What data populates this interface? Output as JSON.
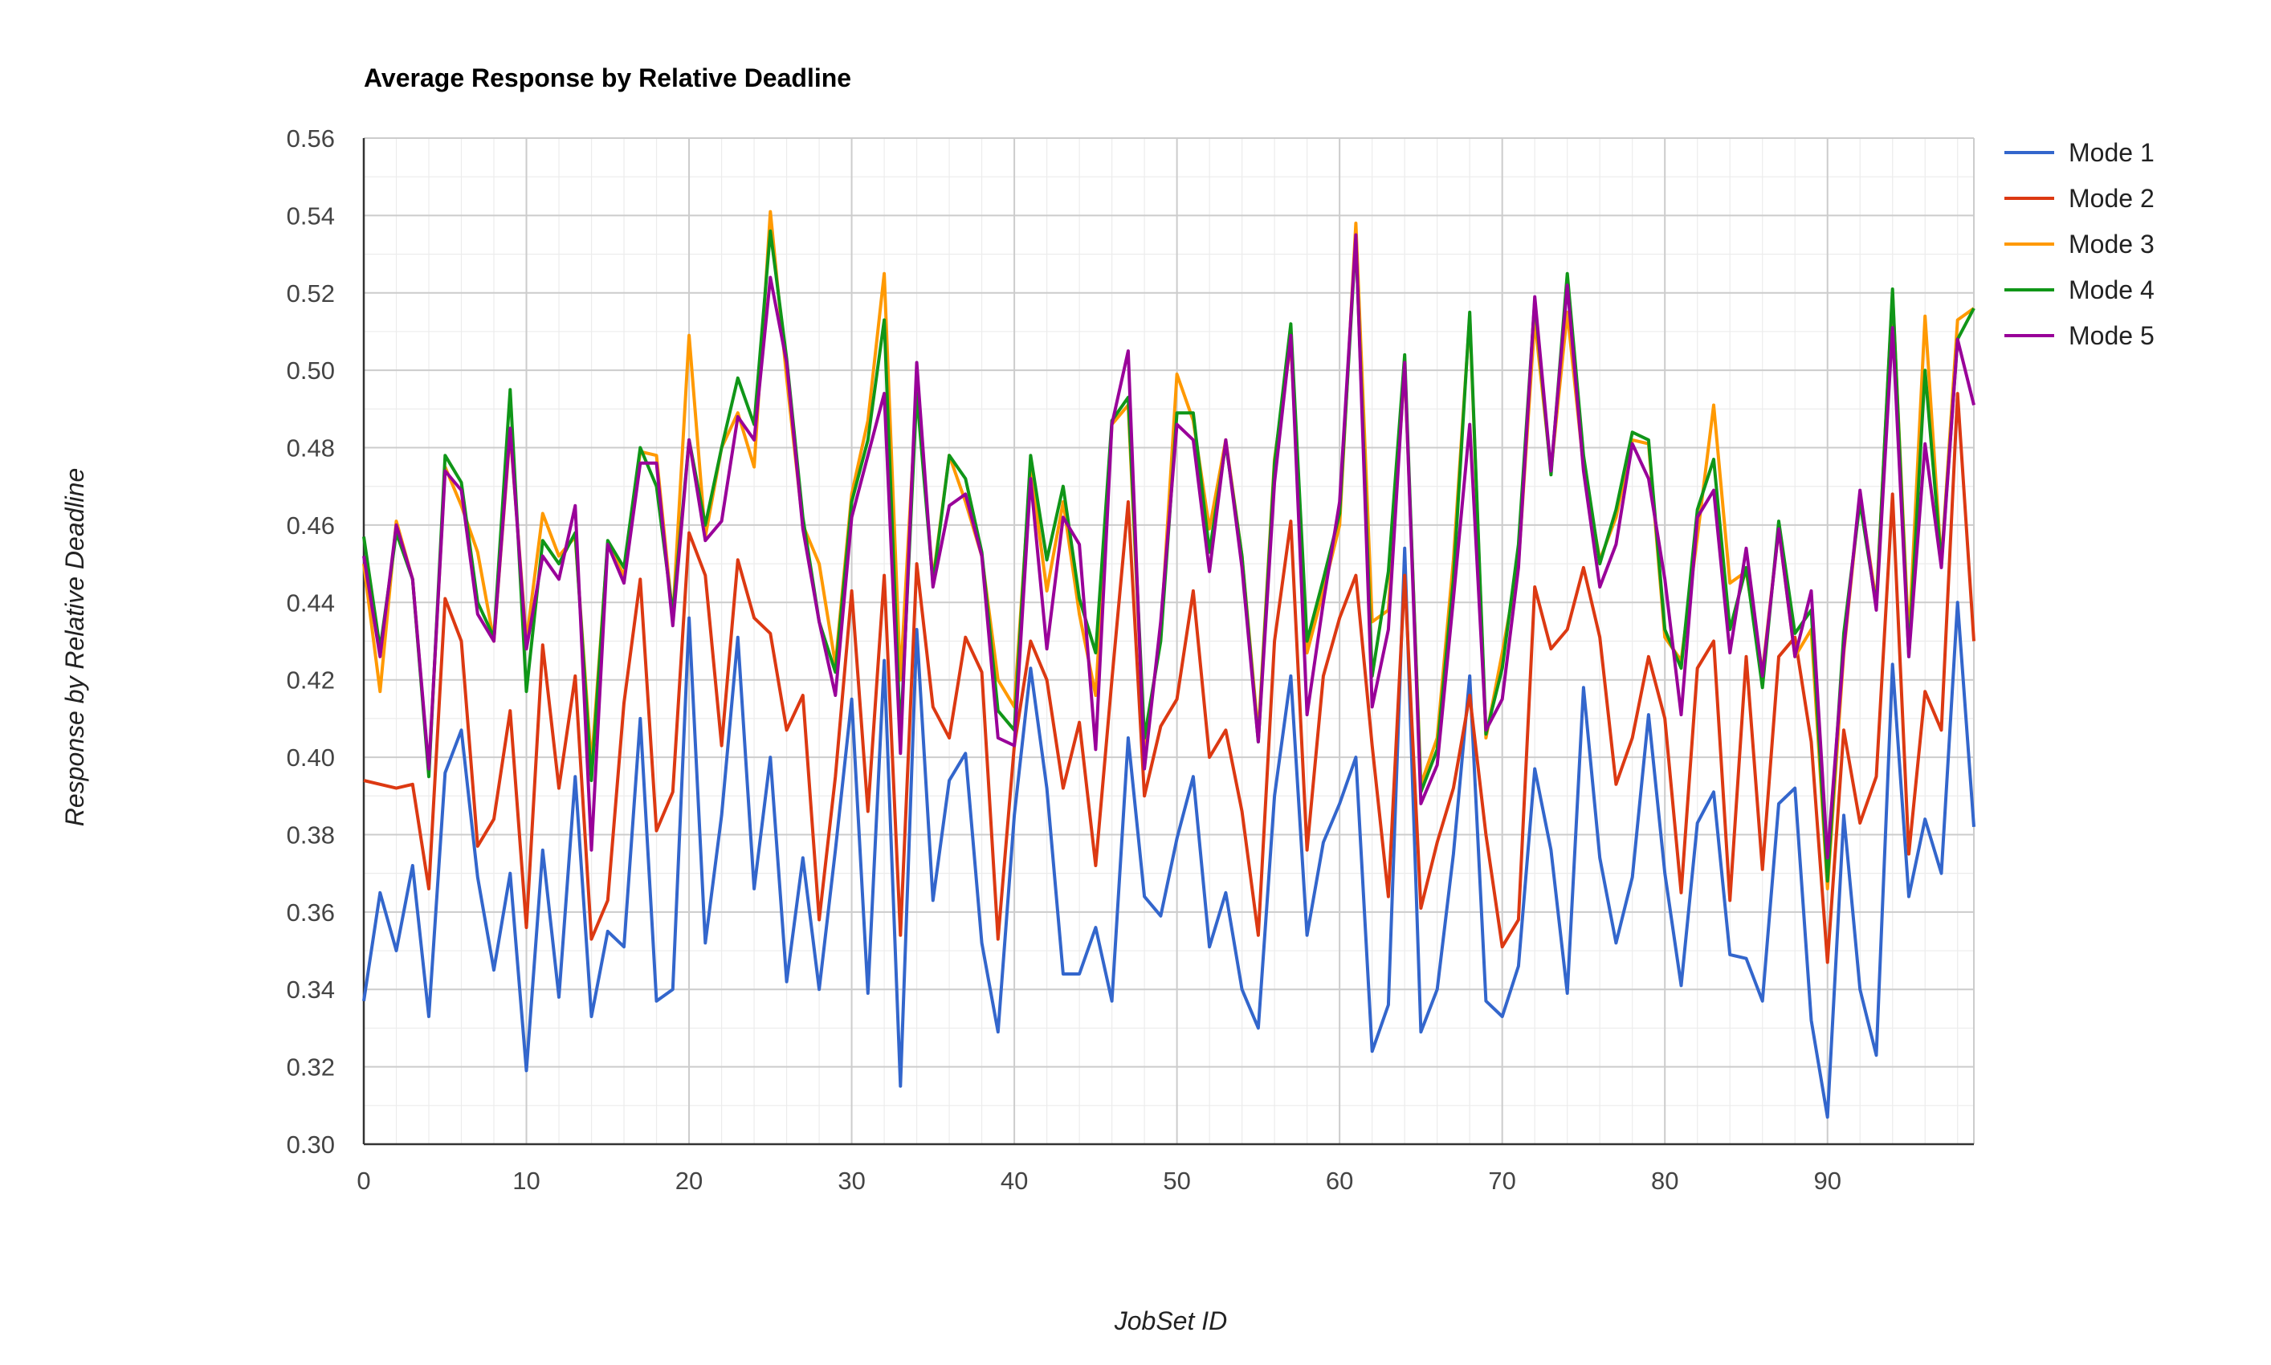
{
  "chart_data": {
    "type": "line",
    "title": "Average Response by Relative Deadline",
    "xlabel": "JobSet ID",
    "ylabel": "Response by Relative Deadline",
    "xlim": [
      0,
      99
    ],
    "ylim": [
      0.3,
      0.56
    ],
    "x_ticks": [
      "0",
      "10",
      "20",
      "30",
      "40",
      "50",
      "60",
      "70",
      "80",
      "90"
    ],
    "y_ticks": [
      "0.30",
      "0.32",
      "0.34",
      "0.36",
      "0.38",
      "0.40",
      "0.42",
      "0.44",
      "0.46",
      "0.48",
      "0.50",
      "0.52",
      "0.54",
      "0.56"
    ],
    "grid": true,
    "legend_position": "right",
    "x": [
      0,
      1,
      2,
      3,
      4,
      5,
      6,
      7,
      8,
      9,
      10,
      11,
      12,
      13,
      14,
      15,
      16,
      17,
      18,
      19,
      20,
      21,
      22,
      23,
      24,
      25,
      26,
      27,
      28,
      29,
      30,
      31,
      32,
      33,
      34,
      35,
      36,
      37,
      38,
      39,
      40,
      41,
      42,
      43,
      44,
      45,
      46,
      47,
      48,
      49,
      50,
      51,
      52,
      53,
      54,
      55,
      56,
      57,
      58,
      59,
      60,
      61,
      62,
      63,
      64,
      65,
      66,
      67,
      68,
      69,
      70,
      71,
      72,
      73,
      74,
      75,
      76,
      77,
      78,
      79,
      80,
      81,
      82,
      83,
      84,
      85,
      86,
      87,
      88,
      89,
      90,
      91,
      92,
      93,
      94,
      95,
      96,
      97,
      98,
      99
    ],
    "series": [
      {
        "name": "Mode 1",
        "color": "#3366cc",
        "values": [
          0.337,
          0.365,
          0.35,
          0.372,
          0.333,
          0.396,
          0.407,
          0.369,
          0.345,
          0.37,
          0.319,
          0.376,
          0.338,
          0.395,
          0.333,
          0.355,
          0.351,
          0.41,
          0.337,
          0.34,
          0.436,
          0.352,
          0.385,
          0.431,
          0.366,
          0.4,
          0.342,
          0.374,
          0.34,
          0.376,
          0.415,
          0.339,
          0.425,
          0.315,
          0.433,
          0.363,
          0.394,
          0.401,
          0.352,
          0.329,
          0.385,
          0.423,
          0.392,
          0.344,
          0.344,
          0.356,
          0.337,
          0.405,
          0.364,
          0.359,
          0.379,
          0.395,
          0.351,
          0.365,
          0.34,
          0.33,
          0.39,
          0.421,
          0.354,
          0.378,
          0.388,
          0.4,
          0.324,
          0.336,
          0.454,
          0.329,
          0.34,
          0.375,
          0.421,
          0.337,
          0.333,
          0.346,
          0.397,
          0.376,
          0.339,
          0.418,
          0.374,
          0.352,
          0.369,
          0.411,
          0.37,
          0.341,
          0.383,
          0.391,
          0.349,
          0.348,
          0.337,
          0.388,
          0.392,
          0.332,
          0.307,
          0.385,
          0.34,
          0.323,
          0.424,
          0.364,
          0.384,
          0.37,
          0.44,
          0.382
        ]
      },
      {
        "name": "Mode 2",
        "color": "#dc3912",
        "values": [
          0.394,
          0.393,
          0.392,
          0.393,
          0.366,
          0.441,
          0.43,
          0.377,
          0.384,
          0.412,
          0.356,
          0.429,
          0.392,
          0.421,
          0.353,
          0.363,
          0.414,
          0.446,
          0.381,
          0.391,
          0.458,
          0.447,
          0.403,
          0.451,
          0.436,
          0.432,
          0.407,
          0.416,
          0.358,
          0.395,
          0.443,
          0.386,
          0.447,
          0.354,
          0.45,
          0.413,
          0.405,
          0.431,
          0.422,
          0.353,
          0.403,
          0.43,
          0.42,
          0.392,
          0.409,
          0.372,
          0.42,
          0.466,
          0.39,
          0.408,
          0.415,
          0.443,
          0.4,
          0.407,
          0.386,
          0.354,
          0.43,
          0.461,
          0.376,
          0.421,
          0.436,
          0.447,
          0.403,
          0.364,
          0.447,
          0.361,
          0.378,
          0.392,
          0.416,
          0.38,
          0.351,
          0.358,
          0.444,
          0.428,
          0.433,
          0.449,
          0.431,
          0.393,
          0.405,
          0.426,
          0.41,
          0.365,
          0.423,
          0.43,
          0.363,
          0.426,
          0.371,
          0.426,
          0.431,
          0.404,
          0.347,
          0.407,
          0.383,
          0.395,
          0.468,
          0.375,
          0.417,
          0.407,
          0.494,
          0.43
        ]
      },
      {
        "name": "Mode 3",
        "color": "#ff9900",
        "values": [
          0.45,
          0.417,
          0.461,
          0.446,
          0.396,
          0.475,
          0.465,
          0.453,
          0.43,
          0.484,
          0.43,
          0.463,
          0.452,
          0.457,
          0.398,
          0.455,
          0.447,
          0.479,
          0.478,
          0.436,
          0.509,
          0.457,
          0.48,
          0.489,
          0.475,
          0.541,
          0.498,
          0.46,
          0.45,
          0.424,
          0.468,
          0.487,
          0.525,
          0.42,
          0.495,
          0.446,
          0.478,
          0.466,
          0.452,
          0.42,
          0.413,
          0.475,
          0.443,
          0.466,
          0.437,
          0.416,
          0.486,
          0.491,
          0.402,
          0.432,
          0.499,
          0.487,
          0.459,
          0.482,
          0.452,
          0.406,
          0.477,
          0.507,
          0.427,
          0.443,
          0.46,
          0.538,
          0.435,
          0.438,
          0.501,
          0.393,
          0.405,
          0.451,
          0.514,
          0.405,
          0.427,
          0.45,
          0.513,
          0.474,
          0.515,
          0.475,
          0.451,
          0.462,
          0.482,
          0.481,
          0.431,
          0.425,
          0.457,
          0.491,
          0.445,
          0.448,
          0.422,
          0.459,
          0.426,
          0.433,
          0.366,
          0.427,
          0.468,
          0.44,
          0.52,
          0.43,
          0.514,
          0.45,
          0.513,
          0.516
        ]
      },
      {
        "name": "Mode 4",
        "color": "#109618",
        "values": [
          0.457,
          0.428,
          0.458,
          0.446,
          0.395,
          0.478,
          0.471,
          0.44,
          0.431,
          0.495,
          0.417,
          0.456,
          0.45,
          0.458,
          0.394,
          0.456,
          0.449,
          0.48,
          0.47,
          0.437,
          0.482,
          0.46,
          0.48,
          0.498,
          0.486,
          0.536,
          0.503,
          0.462,
          0.435,
          0.422,
          0.466,
          0.482,
          0.513,
          0.405,
          0.494,
          0.445,
          0.478,
          0.472,
          0.453,
          0.412,
          0.407,
          0.478,
          0.451,
          0.47,
          0.441,
          0.427,
          0.487,
          0.493,
          0.405,
          0.43,
          0.489,
          0.489,
          0.453,
          0.481,
          0.452,
          0.404,
          0.476,
          0.512,
          0.43,
          0.446,
          0.463,
          0.534,
          0.421,
          0.448,
          0.504,
          0.391,
          0.402,
          0.446,
          0.515,
          0.406,
          0.423,
          0.455,
          0.518,
          0.473,
          0.525,
          0.478,
          0.45,
          0.464,
          0.484,
          0.482,
          0.433,
          0.423,
          0.464,
          0.477,
          0.433,
          0.449,
          0.418,
          0.461,
          0.432,
          0.438,
          0.368,
          0.432,
          0.466,
          0.439,
          0.521,
          0.426,
          0.5,
          0.45,
          0.508,
          0.516
        ]
      },
      {
        "name": "Mode 5",
        "color": "#990099",
        "values": [
          0.452,
          0.426,
          0.46,
          0.446,
          0.397,
          0.474,
          0.469,
          0.437,
          0.43,
          0.485,
          0.428,
          0.452,
          0.446,
          0.465,
          0.376,
          0.455,
          0.445,
          0.476,
          0.476,
          0.434,
          0.482,
          0.456,
          0.461,
          0.488,
          0.482,
          0.524,
          0.502,
          0.459,
          0.435,
          0.416,
          0.462,
          0.478,
          0.494,
          0.401,
          0.502,
          0.444,
          0.465,
          0.468,
          0.452,
          0.405,
          0.403,
          0.472,
          0.428,
          0.462,
          0.455,
          0.402,
          0.486,
          0.505,
          0.397,
          0.435,
          0.486,
          0.482,
          0.448,
          0.482,
          0.449,
          0.404,
          0.471,
          0.509,
          0.411,
          0.44,
          0.466,
          0.535,
          0.413,
          0.433,
          0.502,
          0.388,
          0.398,
          0.441,
          0.486,
          0.407,
          0.415,
          0.449,
          0.519,
          0.474,
          0.522,
          0.474,
          0.444,
          0.455,
          0.481,
          0.472,
          0.446,
          0.411,
          0.462,
          0.469,
          0.427,
          0.454,
          0.421,
          0.459,
          0.426,
          0.443,
          0.374,
          0.428,
          0.469,
          0.438,
          0.511,
          0.426,
          0.481,
          0.449,
          0.508,
          0.491
        ]
      }
    ]
  }
}
